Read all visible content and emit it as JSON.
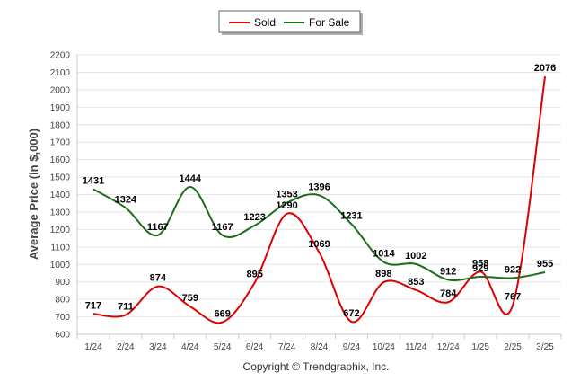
{
  "chart_data": {
    "type": "line",
    "title": "",
    "xlabel": "",
    "ylabel": "Average Price (in $,000)",
    "categories": [
      "1/24",
      "2/24",
      "3/24",
      "4/24",
      "5/24",
      "6/24",
      "7/24",
      "8/24",
      "9/24",
      "10/24",
      "11/24",
      "12/24",
      "1/25",
      "2/25",
      "3/25"
    ],
    "ylim": [
      600,
      2200
    ],
    "yticks": [
      600,
      700,
      800,
      900,
      1000,
      1100,
      1200,
      1300,
      1400,
      1500,
      1600,
      1700,
      1800,
      1900,
      2000,
      2100,
      2200
    ],
    "grid": true,
    "legend_position": "top-center",
    "series": [
      {
        "name": "Sold",
        "color": "#dd0000",
        "values": [
          717,
          711,
          874,
          759,
          669,
          895,
          1290,
          1069,
          672,
          898,
          853,
          784,
          958,
          767,
          2076
        ]
      },
      {
        "name": "For Sale",
        "color": "#1a6e1a",
        "values": [
          1431,
          1324,
          1167,
          1444,
          1167,
          1223,
          1353,
          1396,
          1231,
          1014,
          1002,
          912,
          929,
          922,
          955
        ]
      }
    ],
    "credit": "Copyright © Trendgraphix, Inc."
  }
}
